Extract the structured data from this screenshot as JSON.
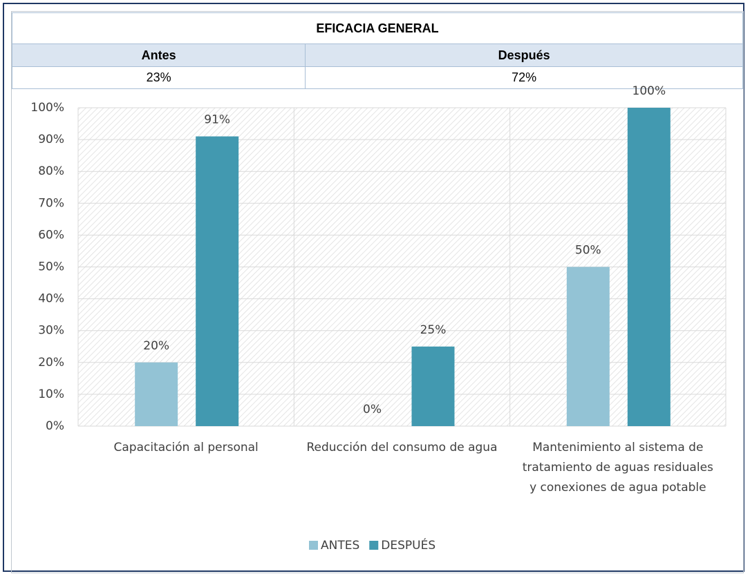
{
  "table": {
    "title": "EFICACIA GENERAL",
    "headers": [
      "Antes",
      "Después"
    ],
    "values": [
      "23%",
      "72%"
    ]
  },
  "chart_data": {
    "type": "bar",
    "categories": [
      "Capacitación al personal",
      "Reducción del consumo de agua",
      "Mantenimiento al sistema de tratamiento de aguas residuales y conexiones de agua potable"
    ],
    "series": [
      {
        "name": "ANTES",
        "color": "#93c3d5",
        "values": [
          20,
          0,
          50
        ],
        "value_labels": [
          "20%",
          "0%",
          "50%"
        ]
      },
      {
        "name": "DESPUÉS",
        "color": "#4299b0",
        "values": [
          91,
          25,
          100
        ],
        "value_labels": [
          "91%",
          "25%",
          "100%"
        ]
      }
    ],
    "ylim": [
      0,
      100
    ],
    "yticks": [
      {
        "value": 0,
        "label": "0%"
      },
      {
        "value": 10,
        "label": "10%"
      },
      {
        "value": 20,
        "label": "20%"
      },
      {
        "value": 30,
        "label": "30%"
      },
      {
        "value": 40,
        "label": "40%"
      },
      {
        "value": 50,
        "label": "50%"
      },
      {
        "value": 60,
        "label": "60%"
      },
      {
        "value": 70,
        "label": "70%"
      },
      {
        "value": 80,
        "label": "80%"
      },
      {
        "value": 90,
        "label": "90%"
      },
      {
        "value": 100,
        "label": "100%"
      }
    ],
    "grid": true,
    "legend": "bottom"
  }
}
